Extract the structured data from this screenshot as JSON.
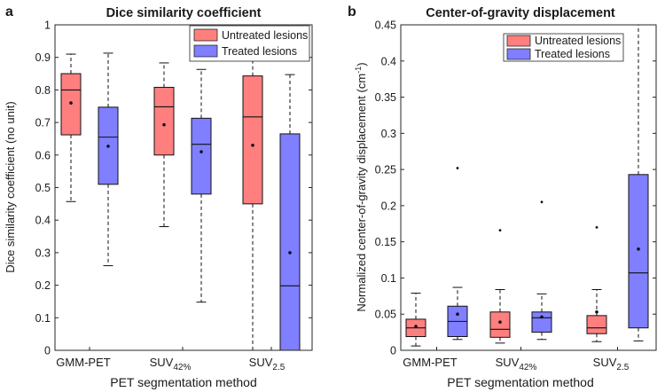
{
  "colors": {
    "untreated": "#ff7f7f",
    "treated": "#7f7fff",
    "axis": "#262626",
    "mean": "#111111"
  },
  "chart_data": [
    {
      "type": "boxplot",
      "panel_label": "a",
      "title": "Dice similarity coefficient",
      "xlabel": "PET segmentation method",
      "ylabel": "Dice similarity coefficient (no unit)",
      "ylim": [
        0,
        1
      ],
      "yticks": [
        0,
        0.1,
        0.2,
        0.3,
        0.4,
        0.5,
        0.6,
        0.7,
        0.8,
        0.9,
        1
      ],
      "ytick_labels": [
        "0",
        "0.1",
        "0.2",
        "0.3",
        "0.4",
        "0.5",
        "0.6",
        "0.7",
        "0.8",
        "0.9",
        "1"
      ],
      "categories": [
        {
          "main": "GMM-PET",
          "sub": ""
        },
        {
          "main": "SUV",
          "sub": "42%"
        },
        {
          "main": "SUV",
          "sub": "2.5"
        }
      ],
      "legend": {
        "position": "top-right",
        "entries": [
          "Untreated lesions",
          "Treated lesions"
        ]
      },
      "series": [
        {
          "name": "Untreated lesions",
          "color_key": "untreated",
          "boxes": [
            {
              "whisker_low": 0.457,
              "q1": 0.662,
              "median": 0.8,
              "q3": 0.85,
              "whisker_high": 0.91,
              "mean": 0.76,
              "outliers": []
            },
            {
              "whisker_low": 0.38,
              "q1": 0.6,
              "median": 0.748,
              "q3": 0.808,
              "whisker_high": 0.883,
              "mean": 0.693,
              "outliers": []
            },
            {
              "whisker_low": 0.0,
              "q1": 0.45,
              "median": 0.717,
              "q3": 0.843,
              "whisker_high": 0.903,
              "mean": 0.63,
              "outliers": []
            }
          ]
        },
        {
          "name": "Treated lesions",
          "color_key": "treated",
          "boxes": [
            {
              "whisker_low": 0.26,
              "q1": 0.51,
              "median": 0.655,
              "q3": 0.747,
              "whisker_high": 0.913,
              "mean": 0.627,
              "outliers": []
            },
            {
              "whisker_low": 0.148,
              "q1": 0.48,
              "median": 0.633,
              "q3": 0.713,
              "whisker_high": 0.863,
              "mean": 0.61,
              "outliers": []
            },
            {
              "whisker_low": 0.0,
              "q1": 0.0,
              "median": 0.198,
              "q3": 0.665,
              "whisker_high": 0.847,
              "mean": 0.3,
              "outliers": []
            }
          ]
        }
      ]
    },
    {
      "type": "boxplot",
      "panel_label": "b",
      "title": "Center-of-gravity displacement",
      "xlabel": "PET segmentation method",
      "ylabel": "Normalized center-of-gravity displacement (cm",
      "ylabel_sup": "-1",
      "ylabel_end": ")",
      "ylim": [
        0,
        0.45
      ],
      "yticks": [
        0,
        0.05,
        0.1,
        0.15,
        0.2,
        0.25,
        0.3,
        0.35,
        0.4,
        0.45
      ],
      "ytick_labels": [
        "0",
        "0.05",
        "0.1",
        "0.15",
        "0.2",
        "0.25",
        "0.3",
        "0.35",
        "0.4",
        "0.45"
      ],
      "categories": [
        {
          "main": "GMM-PET",
          "sub": ""
        },
        {
          "main": "SUV",
          "sub": "42%"
        },
        {
          "main": "SUV",
          "sub": "2.5"
        }
      ],
      "legend": {
        "position": "top-right",
        "entries": [
          "Untreated lesions",
          "Treated lesions"
        ]
      },
      "series": [
        {
          "name": "Untreated lesions",
          "color_key": "untreated",
          "boxes": [
            {
              "whisker_low": 0.006,
              "q1": 0.019,
              "median": 0.031,
              "q3": 0.043,
              "whisker_high": 0.079,
              "mean": 0.033,
              "outliers": []
            },
            {
              "whisker_low": 0.01,
              "q1": 0.018,
              "median": 0.029,
              "q3": 0.053,
              "whisker_high": 0.084,
              "mean": 0.039,
              "outliers": [
                0.166
              ]
            },
            {
              "whisker_low": 0.012,
              "q1": 0.023,
              "median": 0.031,
              "q3": 0.048,
              "whisker_high": 0.084,
              "mean": 0.053,
              "outliers": [
                0.17
              ]
            }
          ]
        },
        {
          "name": "Treated lesions",
          "color_key": "treated",
          "boxes": [
            {
              "whisker_low": 0.015,
              "q1": 0.019,
              "median": 0.04,
              "q3": 0.061,
              "whisker_high": 0.087,
              "mean": 0.05,
              "outliers": [
                0.252
              ]
            },
            {
              "whisker_low": 0.015,
              "q1": 0.025,
              "median": 0.045,
              "q3": 0.053,
              "whisker_high": 0.078,
              "mean": 0.046,
              "outliers": [
                0.205
              ]
            },
            {
              "whisker_low": 0.013,
              "q1": 0.031,
              "median": 0.107,
              "q3": 0.243,
              "whisker_high": 0.45,
              "mean": 0.14,
              "outliers": []
            }
          ]
        }
      ]
    }
  ]
}
